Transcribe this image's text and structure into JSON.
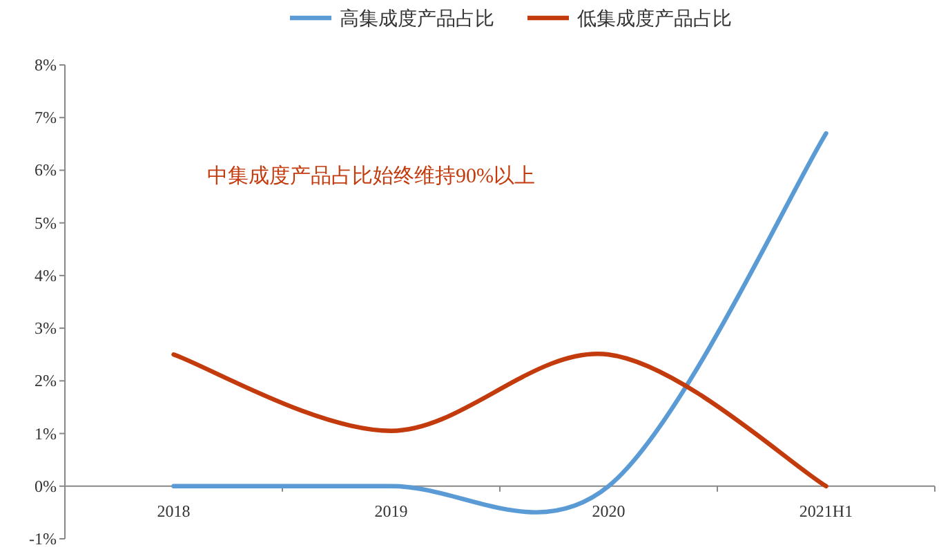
{
  "chart_data": {
    "type": "line",
    "categories": [
      "2018",
      "2019",
      "2020",
      "2021H1"
    ],
    "series": [
      {
        "name": "高集成度产品占比",
        "color": "#5b9bd5",
        "values": [
          0,
          0,
          0,
          6.7
        ]
      },
      {
        "name": "低集成度产品占比",
        "color": "#c33a0c",
        "values": [
          2.5,
          1.05,
          2.5,
          0
        ]
      }
    ],
    "ylim": [
      -1,
      8
    ],
    "yticks": [
      {
        "value": -1,
        "label": "-1%"
      },
      {
        "value": 0,
        "label": "0%"
      },
      {
        "value": 1,
        "label": "1%"
      },
      {
        "value": 2,
        "label": "2%"
      },
      {
        "value": 3,
        "label": "3%"
      },
      {
        "value": 4,
        "label": "4%"
      },
      {
        "value": 5,
        "label": "5%"
      },
      {
        "value": 6,
        "label": "6%"
      },
      {
        "value": 7,
        "label": "7%"
      },
      {
        "value": 8,
        "label": "8%"
      }
    ],
    "legend": "top",
    "annotations": [
      "中集成度产品占比始终维持90%以上"
    ]
  }
}
